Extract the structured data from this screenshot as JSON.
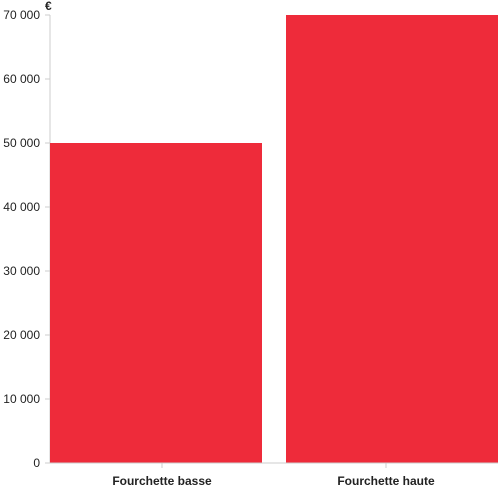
{
  "chart_data": {
    "type": "bar",
    "unit_label": "€",
    "categories": [
      "Fourchette basse",
      "Fourchette haute"
    ],
    "values": [
      50000,
      70000
    ],
    "ylim": [
      0,
      70000
    ],
    "y_ticks": [
      {
        "value": 0,
        "label": "0"
      },
      {
        "value": 10000,
        "label": "10 000"
      },
      {
        "value": 20000,
        "label": "20 000"
      },
      {
        "value": 30000,
        "label": "30 000"
      },
      {
        "value": 40000,
        "label": "40 000"
      },
      {
        "value": 50000,
        "label": "50 000"
      },
      {
        "value": 60000,
        "label": "60 000"
      },
      {
        "value": 70000,
        "label": "70 000"
      }
    ],
    "grid": false,
    "colors": {
      "bar": "#ee2b3a",
      "axis": "#cccccc",
      "text": "#222222"
    }
  }
}
